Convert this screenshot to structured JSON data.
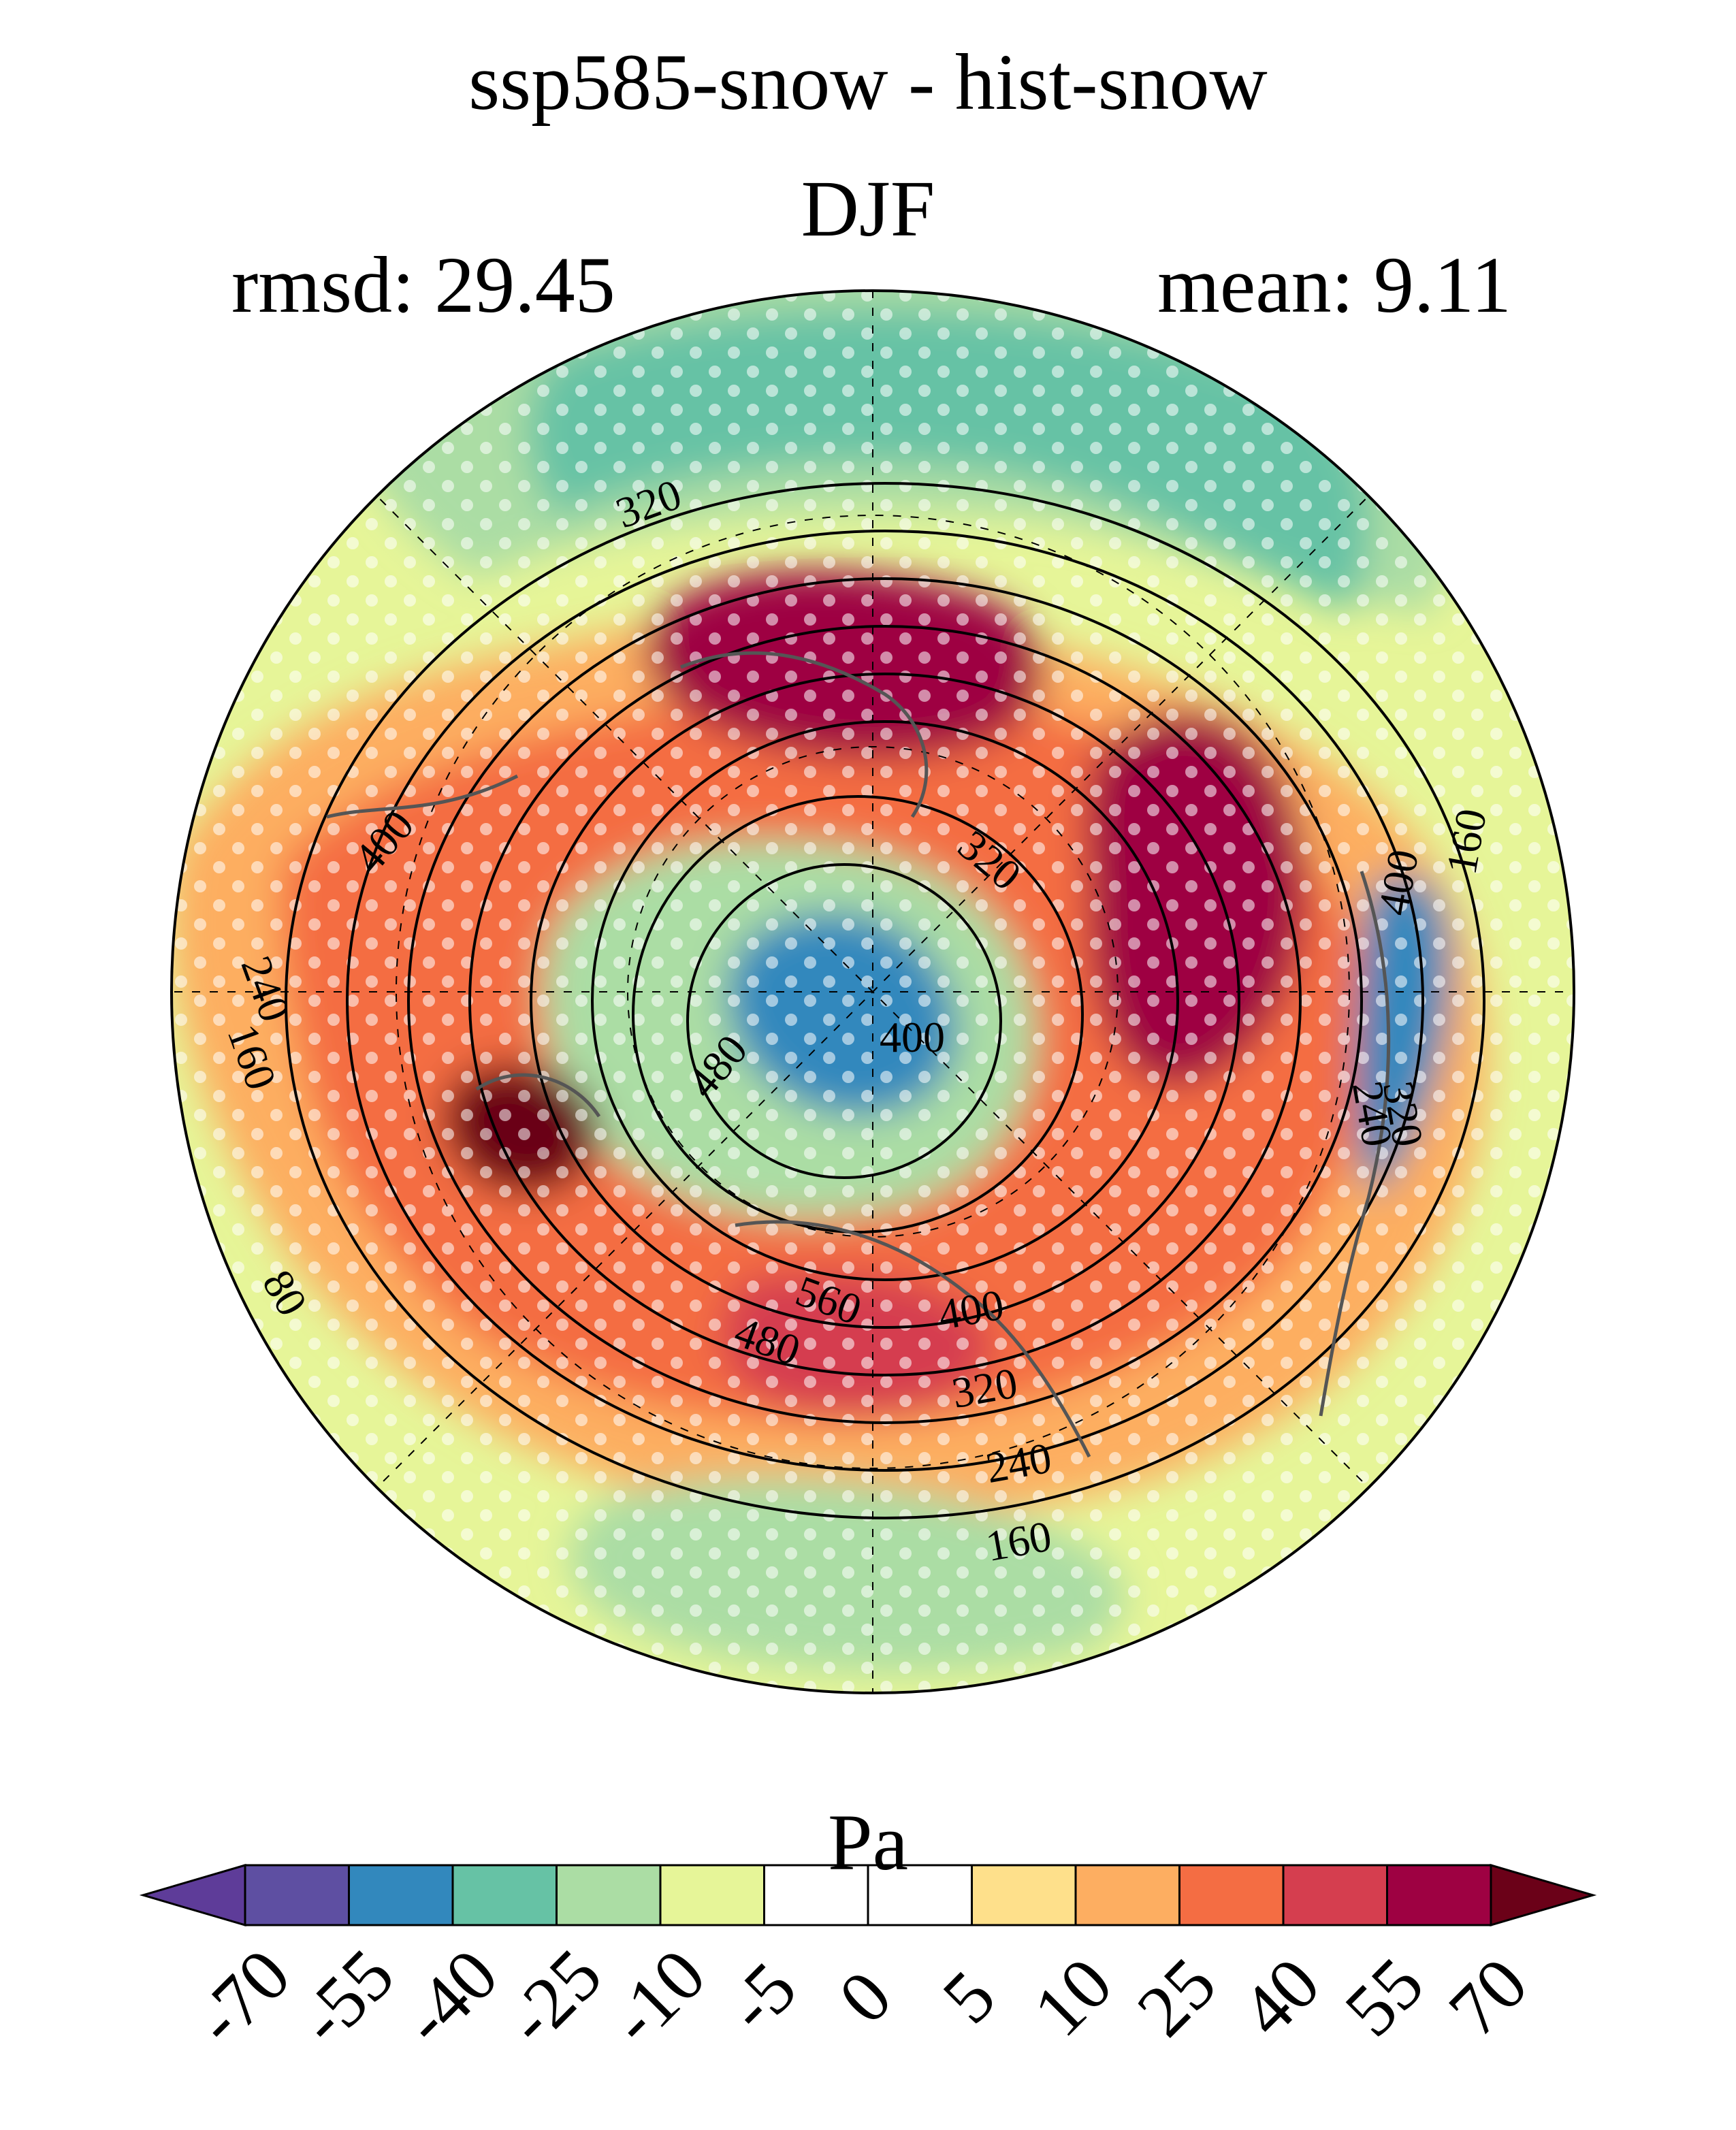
{
  "header": {
    "title": "ssp585-snow - hist-snow",
    "season": "DJF",
    "rmsd": "rmsd: 29.45",
    "mean": "mean: 9.11"
  },
  "colorbar": {
    "units": "Pa",
    "tick_labels": [
      "-70",
      "-55",
      "-40",
      "-25",
      "-10",
      "-5",
      "0",
      "5",
      "10",
      "25",
      "40",
      "55",
      "70"
    ],
    "colors": [
      "#5e3c99",
      "#5e4fa2",
      "#3288bd",
      "#66c2a5",
      "#abdda4",
      "#e6f598",
      "#ffffff",
      "#ffffff",
      "#fee08b",
      "#fdae61",
      "#f46d43",
      "#d53e4f",
      "#9e0142",
      "#6b0118"
    ]
  },
  "contour_labels": [
    "320",
    "400",
    "320",
    "240",
    "160",
    "400",
    "480",
    "400",
    "160",
    "240",
    "320",
    "560",
    "480",
    "80",
    "400",
    "320",
    "240",
    "160"
  ],
  "map": {
    "projection": "north-polar-stereographic",
    "stippling": "significance-dots"
  }
}
